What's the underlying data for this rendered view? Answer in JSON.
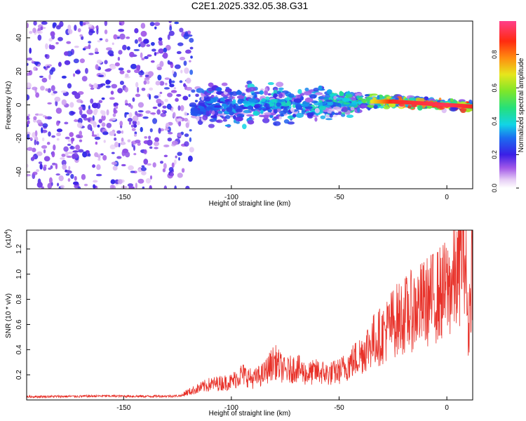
{
  "title": "C2E1.2025.332.05.38.G31",
  "chart_data": [
    {
      "type": "heatmap",
      "xlabel": "Height of straight line (km)",
      "ylabel": "Frequency (Hz)",
      "xlim": [
        -195,
        12
      ],
      "ylim": [
        -50,
        50
      ],
      "xticks": [
        -150,
        -100,
        -50,
        0
      ],
      "yticks": [
        -40,
        -20,
        0,
        20,
        40
      ],
      "colorbar": {
        "label": "Normalized spectral amplitude",
        "range": [
          0.0,
          1.0
        ],
        "ticks": [
          "0.0",
          "0.2",
          "0.4",
          "0.6",
          "0.8"
        ]
      },
      "description_profile": [
        {
          "x": -195,
          "center": 0,
          "spread": 50,
          "peak": 0.22
        },
        {
          "x": -120,
          "center": 0,
          "spread": 50,
          "peak": 0.25
        },
        {
          "x": -118,
          "center": 0,
          "spread": 9,
          "peak": 0.3
        },
        {
          "x": -90,
          "center": 0,
          "spread": 8,
          "peak": 0.4
        },
        {
          "x": -60,
          "center": 0,
          "spread": 7,
          "peak": 0.45
        },
        {
          "x": -40,
          "center": 2,
          "spread": 4,
          "peak": 0.55
        },
        {
          "x": -25,
          "center": 2,
          "spread": 2,
          "peak": 0.9
        },
        {
          "x": 0,
          "center": 0,
          "spread": 2,
          "peak": 0.95
        },
        {
          "x": 12,
          "center": -1,
          "spread": 2,
          "peak": 0.9
        }
      ]
    },
    {
      "type": "line",
      "xlabel": "Height of straight line (km)",
      "ylabel": "SNR (10 * v/v)",
      "yscale_label": "(x10",
      "yscale_exp": "4",
      "xlim": [
        -195,
        12
      ],
      "ylim": [
        0,
        1.35
      ],
      "xticks": [
        -150,
        -100,
        -50,
        0
      ],
      "yticks": [
        0.2,
        0.4,
        0.6,
        0.8,
        1.0,
        1.2
      ],
      "series": [
        {
          "color": "#e8322a",
          "x": [
            -195,
            -170,
            -160,
            -140,
            -125,
            -120,
            -110,
            -100,
            -95,
            -90,
            -85,
            -80,
            -75,
            -70,
            -65,
            -60,
            -55,
            -50,
            -45,
            -40,
            -35,
            -30,
            -25,
            -20,
            -15,
            -10,
            -5,
            0,
            5,
            8,
            10,
            12
          ],
          "y": [
            0.03,
            0.035,
            0.04,
            0.035,
            0.04,
            0.06,
            0.12,
            0.14,
            0.2,
            0.16,
            0.2,
            0.3,
            0.22,
            0.25,
            0.2,
            0.22,
            0.2,
            0.22,
            0.28,
            0.35,
            0.45,
            0.5,
            0.6,
            0.65,
            0.7,
            0.75,
            0.8,
            0.85,
            0.95,
            1.3,
            0.5,
            1.2
          ]
        }
      ]
    }
  ]
}
